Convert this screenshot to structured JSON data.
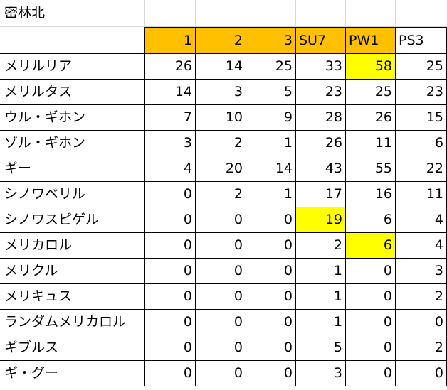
{
  "sheet": {
    "title": "密林北",
    "columns": [
      "1",
      "2",
      "3",
      "SU7",
      "PW1",
      "PS3"
    ],
    "rows": [
      {
        "name": "メリルリア",
        "values": [
          "26",
          "14",
          "25",
          "33",
          "58",
          "25"
        ]
      },
      {
        "name": "メリルタス",
        "values": [
          "14",
          "3",
          "5",
          "23",
          "25",
          "23"
        ]
      },
      {
        "name": "ウル・ギホン",
        "values": [
          "7",
          "10",
          "9",
          "28",
          "26",
          "15"
        ]
      },
      {
        "name": "ゾル・ギホン",
        "values": [
          "3",
          "2",
          "1",
          "26",
          "11",
          "6"
        ]
      },
      {
        "name": "ギー",
        "values": [
          "4",
          "20",
          "14",
          "43",
          "55",
          "22"
        ]
      },
      {
        "name": "シノワベリル",
        "values": [
          "0",
          "2",
          "1",
          "17",
          "16",
          "11"
        ]
      },
      {
        "name": "シノワスピゲル",
        "values": [
          "0",
          "0",
          "0",
          "19",
          "6",
          "4"
        ]
      },
      {
        "name": "メリカロル",
        "values": [
          "0",
          "0",
          "0",
          "2",
          "6",
          "4"
        ]
      },
      {
        "name": "メリクル",
        "values": [
          "0",
          "0",
          "0",
          "1",
          "0",
          "3"
        ]
      },
      {
        "name": "メリキュス",
        "values": [
          "0",
          "0",
          "0",
          "1",
          "0",
          "2"
        ]
      },
      {
        "name": "ランダムメリカロル",
        "values": [
          "0",
          "0",
          "0",
          "1",
          "0",
          "0"
        ]
      },
      {
        "name": "ギブルス",
        "values": [
          "0",
          "0",
          "0",
          "5",
          "0",
          "2"
        ]
      },
      {
        "name": "ギ・グー",
        "values": [
          "0",
          "0",
          "0",
          "3",
          "0",
          "0"
        ]
      }
    ],
    "colors": {
      "header_fill": "#ffc000",
      "highlight_fill": "#ffff00",
      "border": "#000000",
      "gridline": "#d9d9d9"
    }
  }
}
